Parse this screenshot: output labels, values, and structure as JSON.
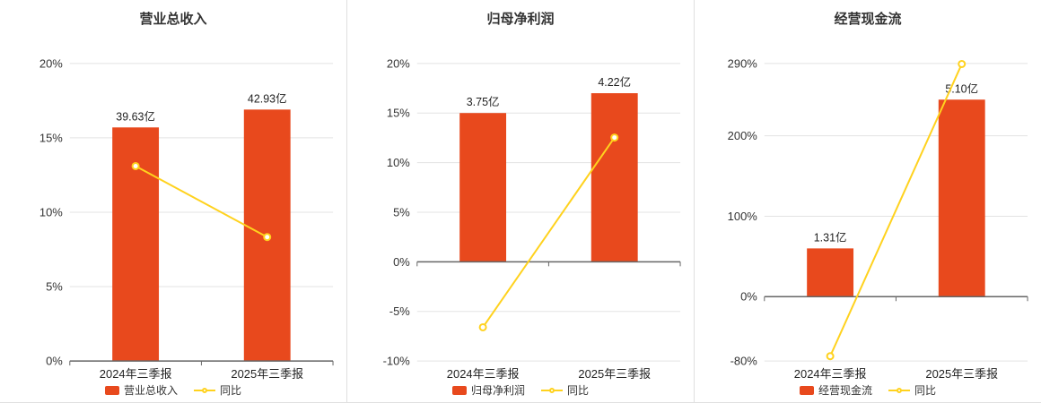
{
  "style": {
    "background": "#ffffff",
    "bar_color": "#e8491d",
    "line_color": "#ffd21e",
    "axis_color": "#666666",
    "grid_color": "#e3e3e3",
    "text_color": "#333333",
    "divider_color": "#e0e0e0"
  },
  "chart_data": [
    {
      "type": "bar+line",
      "title": "营业总收入",
      "categories": [
        "2024年三季报",
        "2025年三季报"
      ],
      "grid": true,
      "legend_position": "bottom",
      "bars": {
        "name": "营业总收入",
        "unit": "亿",
        "labels": [
          "39.63亿",
          "42.93亿"
        ],
        "values_yi": [
          39.63,
          42.93
        ],
        "display_pct": [
          15.7,
          16.9
        ]
      },
      "line": {
        "name": "同比",
        "values_pct": [
          13.1,
          8.33
        ]
      },
      "y_axis": {
        "min": 0,
        "max": 20,
        "ticks": [
          20,
          15,
          10,
          5,
          0
        ],
        "tick_labels": [
          "20%",
          "15%",
          "10%",
          "5%",
          "0%"
        ]
      }
    },
    {
      "type": "bar+line",
      "title": "归母净利润",
      "categories": [
        "2024年三季报",
        "2025年三季报"
      ],
      "grid": true,
      "legend_position": "bottom",
      "bars": {
        "name": "归母净利润",
        "unit": "亿",
        "labels": [
          "3.75亿",
          "4.22亿"
        ],
        "values_yi": [
          3.75,
          4.22
        ],
        "display_pct": [
          15.0,
          17.0
        ]
      },
      "line": {
        "name": "同比",
        "values_pct": [
          -6.6,
          12.53
        ]
      },
      "y_axis": {
        "min": -10,
        "max": 20,
        "ticks": [
          20,
          15,
          10,
          5,
          0,
          -5,
          -10
        ],
        "tick_labels": [
          "20%",
          "15%",
          "10%",
          "5%",
          "0%",
          "-5%",
          "-10%"
        ]
      }
    },
    {
      "type": "bar+line",
      "title": "经营现金流",
      "categories": [
        "2024年三季报",
        "2025年三季报"
      ],
      "grid": true,
      "legend_position": "bottom",
      "bars": {
        "name": "经营现金流",
        "unit": "亿",
        "labels": [
          "1.31亿",
          "5.10亿"
        ],
        "values_yi": [
          1.31,
          5.1
        ],
        "display_pct": [
          60,
          245
        ]
      },
      "line": {
        "name": "同比",
        "values_pct": [
          -74,
          289.31
        ]
      },
      "y_axis": {
        "min": -80,
        "max": 290,
        "ticks": [
          290,
          200,
          100,
          0,
          -80
        ],
        "tick_labels": [
          "290%",
          "200%",
          "100%",
          "0%",
          "-80%"
        ]
      }
    }
  ]
}
